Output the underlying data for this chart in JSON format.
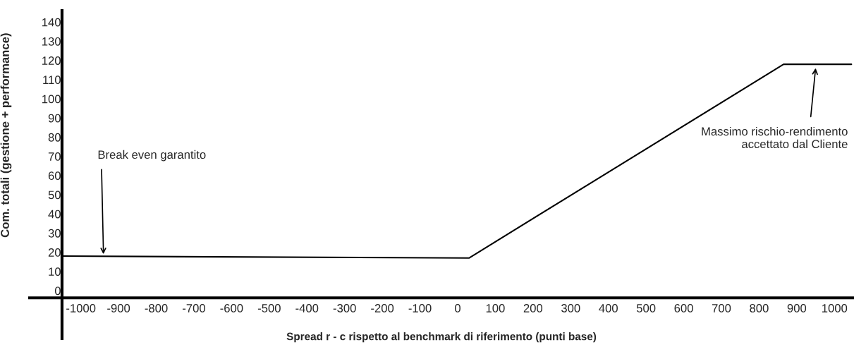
{
  "chart_data": {
    "type": "line",
    "xlabel": "Spread r - c rispetto al benchmark di riferimento (punti base)",
    "ylabel": "Com. totali (gestione + performance)",
    "x": [
      -1050,
      30,
      865,
      1045
    ],
    "series": [
      {
        "color": "#000000",
        "values": [
          18,
          17,
          118,
          118
        ]
      }
    ],
    "xlim": [
      -1136,
      1050
    ],
    "xticks": [
      -1000,
      -900,
      -800,
      -700,
      -600,
      -500,
      -400,
      -300,
      -200,
      -100,
      0,
      100,
      200,
      300,
      400,
      500,
      600,
      700,
      800,
      900,
      1000
    ],
    "ylim": [
      -25,
      146
    ],
    "yticks": [
      0,
      10,
      20,
      30,
      40,
      50,
      60,
      70,
      80,
      90,
      100,
      110,
      120,
      130,
      140
    ],
    "annotations": [
      {
        "text": "Break even garantito",
        "x": -940,
        "y": 19
      },
      {
        "text": "Massimo rischio-rendimento\naccettato dal Cliente",
        "x": 950,
        "y": 116
      }
    ],
    "grid": false,
    "legend": false,
    "marker": "none",
    "line_style": "solid"
  }
}
